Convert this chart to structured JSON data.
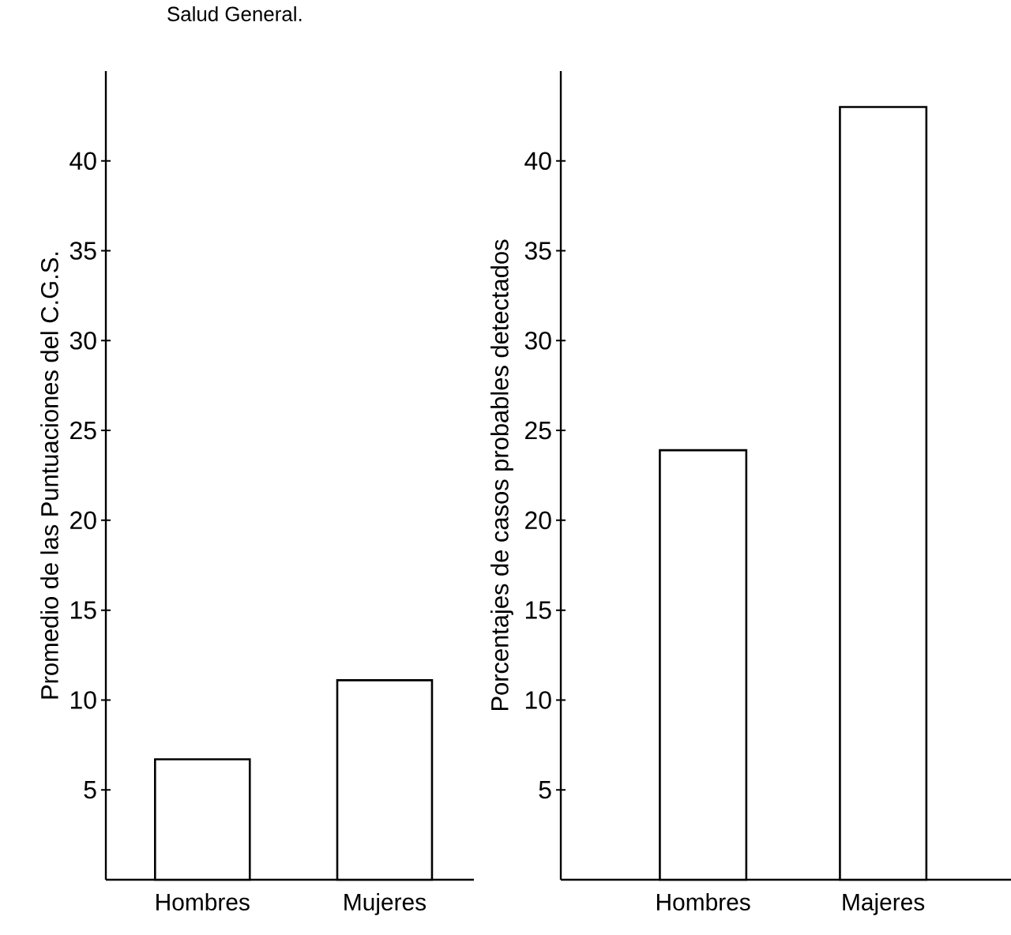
{
  "chart_data": [
    {
      "type": "bar",
      "title": "Salud General.",
      "ylabel": "Promedio de las Puntuaciones del C.G.S.",
      "categories": [
        "Hombres",
        "Mujeres"
      ],
      "values": [
        6.7,
        11.1
      ],
      "color": "#ffffff",
      "ylim": [
        0,
        45
      ],
      "yticks": [
        5,
        10,
        15,
        20,
        25,
        30,
        35,
        40
      ],
      "grid": false
    },
    {
      "type": "bar",
      "ylabel": "Porcentajes de casos probables detectados",
      "categories": [
        "Hombres",
        "Majeres"
      ],
      "values": [
        23.9,
        43.0
      ],
      "color": "#ffffff",
      "ylim": [
        0,
        45
      ],
      "yticks": [
        5,
        10,
        15,
        20,
        25,
        30,
        35,
        40
      ],
      "grid": false
    }
  ]
}
